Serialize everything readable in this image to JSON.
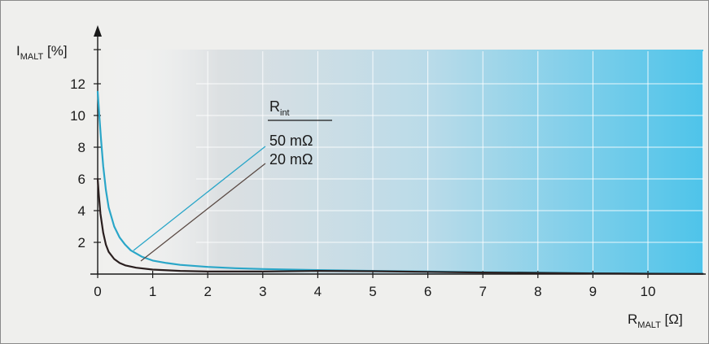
{
  "chart_data": {
    "type": "line",
    "x_axis": {
      "label_main": "R",
      "label_sub": "MALT",
      "label_unit": " [Ω]",
      "range": [
        0,
        11
      ],
      "ticks": [
        0,
        1,
        2,
        3,
        4,
        5,
        6,
        7,
        8,
        9,
        10
      ]
    },
    "y_axis": {
      "label_main": "I",
      "label_sub": "MALT",
      "label_unit": " [%]",
      "range": [
        0,
        14
      ],
      "ticks": [
        2,
        4,
        6,
        8,
        10,
        12
      ]
    },
    "legend": {
      "title_main": "R",
      "title_sub": "int"
    },
    "series": [
      {
        "name": "50 mΩ",
        "color": "#2aa6c8",
        "points": [
          [
            0,
            11.5
          ],
          [
            0.03,
            10.0
          ],
          [
            0.06,
            8.5
          ],
          [
            0.1,
            6.8
          ],
          [
            0.15,
            5.3
          ],
          [
            0.2,
            4.2
          ],
          [
            0.3,
            3.0
          ],
          [
            0.4,
            2.3
          ],
          [
            0.5,
            1.85
          ],
          [
            0.6,
            1.5
          ],
          [
            0.8,
            1.1
          ],
          [
            1.0,
            0.85
          ],
          [
            1.25,
            0.7
          ],
          [
            1.5,
            0.58
          ],
          [
            2.0,
            0.45
          ],
          [
            2.5,
            0.37
          ],
          [
            3.0,
            0.32
          ],
          [
            4.0,
            0.25
          ],
          [
            5.0,
            0.2
          ],
          [
            6.0,
            0.16
          ],
          [
            7.0,
            0.12
          ],
          [
            8.0,
            0.09
          ],
          [
            9.0,
            0.05
          ],
          [
            10.0,
            0.03
          ],
          [
            11.0,
            0.02
          ]
        ]
      },
      {
        "name": "20 mΩ",
        "color": "#2a1f1f",
        "points": [
          [
            0,
            6.0
          ],
          [
            0.02,
            5.0
          ],
          [
            0.05,
            3.8
          ],
          [
            0.1,
            2.6
          ],
          [
            0.15,
            1.85
          ],
          [
            0.2,
            1.4
          ],
          [
            0.3,
            0.95
          ],
          [
            0.4,
            0.7
          ],
          [
            0.5,
            0.55
          ],
          [
            0.7,
            0.4
          ],
          [
            1.0,
            0.28
          ],
          [
            1.5,
            0.2
          ],
          [
            2.0,
            0.16
          ],
          [
            3.0,
            0.16
          ],
          [
            4.0,
            0.2
          ],
          [
            5.0,
            0.18
          ],
          [
            6.0,
            0.14
          ],
          [
            7.0,
            0.1
          ],
          [
            8.0,
            0.07
          ],
          [
            9.0,
            0.04
          ],
          [
            10.0,
            0.02
          ],
          [
            11.0,
            0.01
          ]
        ]
      }
    ]
  }
}
